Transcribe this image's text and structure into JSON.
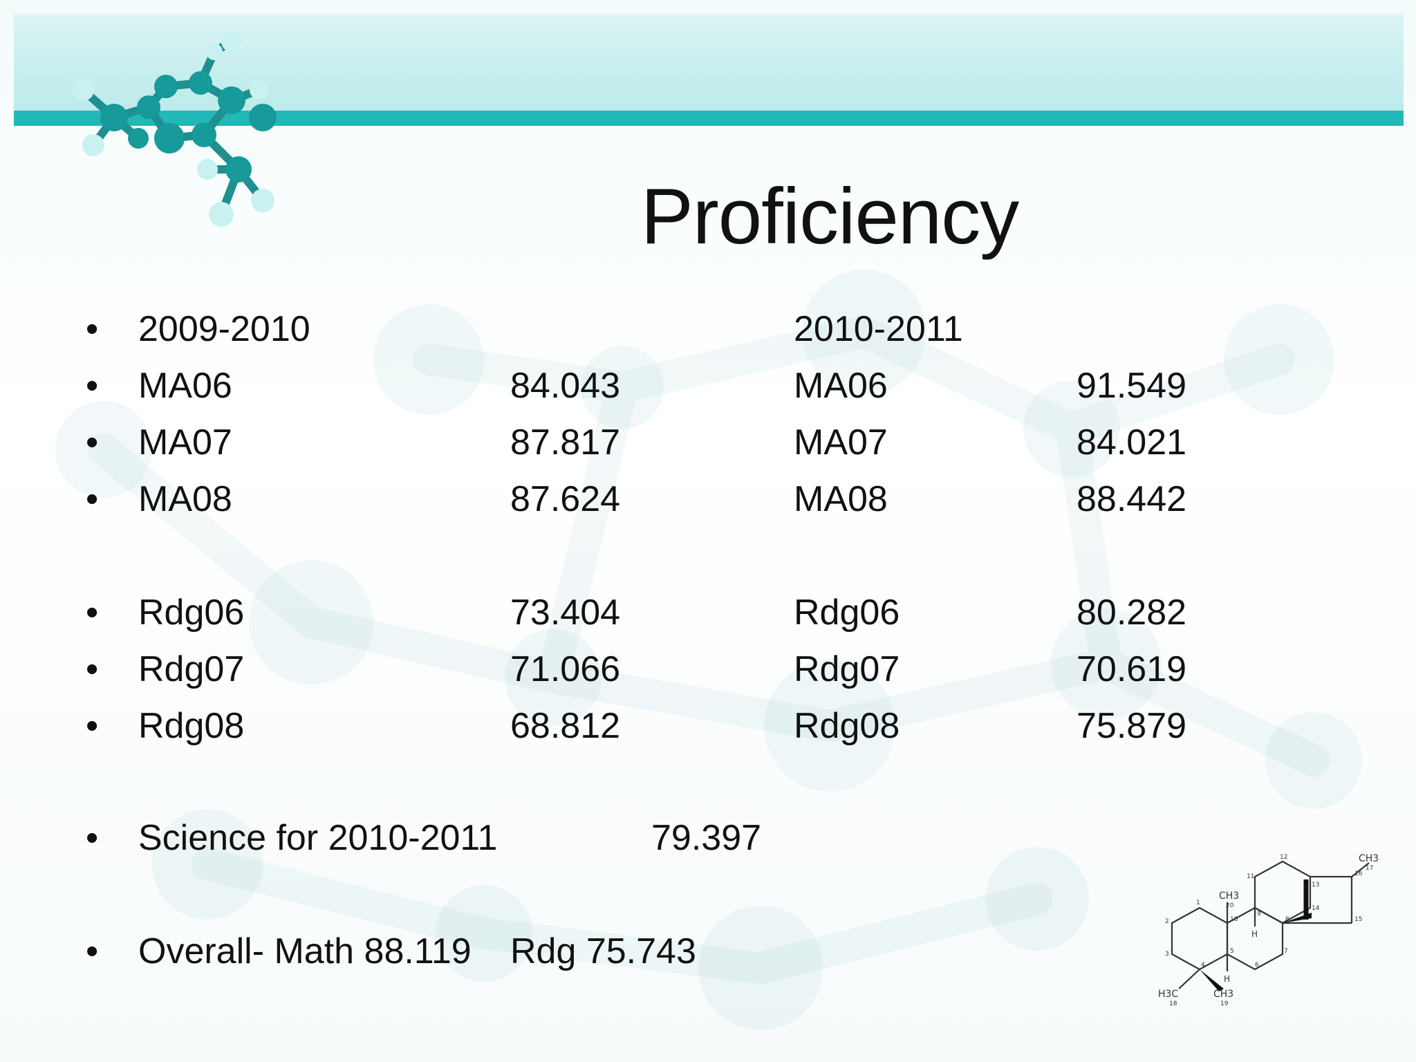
{
  "title": "Proficiency",
  "bullet_char": "•",
  "header_row": {
    "year_a": "2009-2010",
    "year_b": "2010-2011"
  },
  "math_rows": [
    {
      "label_a": "MA06",
      "value_a": "84.043",
      "label_b": "MA06",
      "value_b": "91.549"
    },
    {
      "label_a": "MA07",
      "value_a": "87.817",
      "label_b": "MA07",
      "value_b": "84.021"
    },
    {
      "label_a": "MA08",
      "value_a": "87.624",
      "label_b": "MA08",
      "value_b": "88.442"
    }
  ],
  "reading_rows": [
    {
      "label_a": "Rdg06",
      "value_a": "73.404",
      "label_b": "Rdg06",
      "value_b": "80.282"
    },
    {
      "label_a": "Rdg07",
      "value_a": "71.066",
      "label_b": "Rdg07",
      "value_b": "70.619"
    },
    {
      "label_a": "Rdg08",
      "value_a": "68.812",
      "label_b": "Rdg08",
      "value_b": "75.879"
    }
  ],
  "science": {
    "label": "Science for 2010-2011",
    "value": "79.397"
  },
  "overall": {
    "math": "Overall- Math 88.119",
    "reading": "Rdg 75.743"
  },
  "decor": {
    "molecule_icon": "molecule-ball-stick-icon",
    "steroid_icon": "steroid-structure-icon",
    "accent_color": "#22b8b8",
    "band_color": "#c7eeee",
    "steroid_labels": [
      "CH3",
      "20",
      "CH3",
      "17",
      "H3C",
      "18",
      "CH3",
      "19",
      "H",
      "H",
      "1",
      "2",
      "3",
      "4",
      "5",
      "6",
      "7",
      "8",
      "9",
      "10",
      "11",
      "12",
      "13",
      "14",
      "15",
      "16"
    ]
  }
}
